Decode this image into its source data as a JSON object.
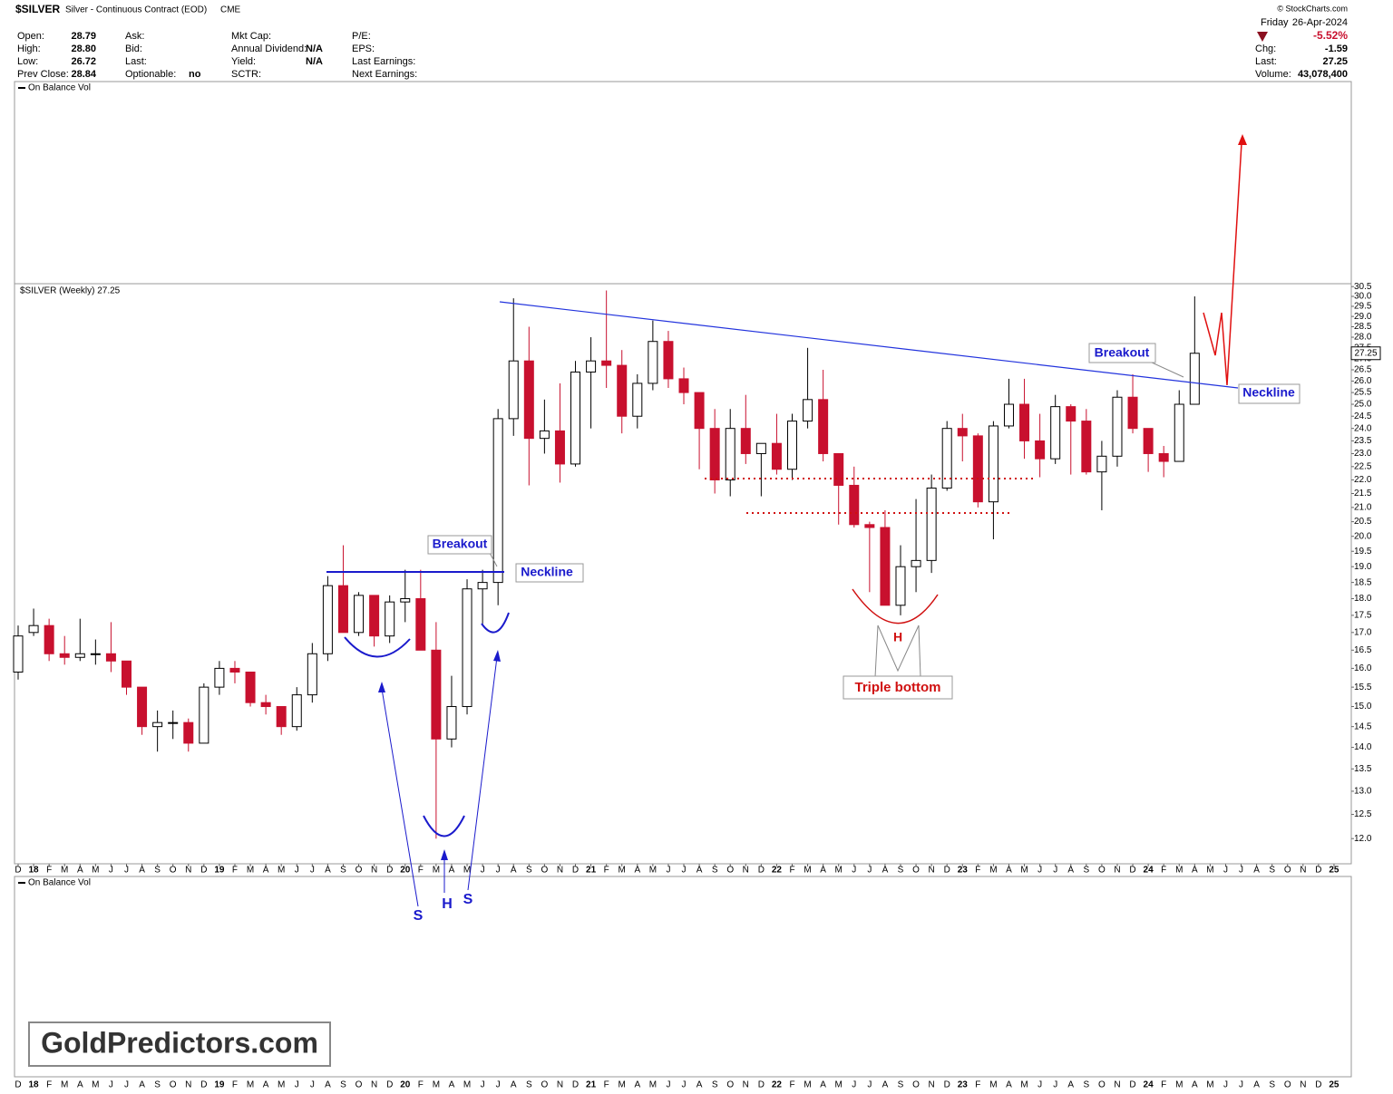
{
  "header": {
    "symbol": "$SILVER",
    "description": "Silver - Continuous Contract (EOD)",
    "exchange": "CME",
    "copyright": "© StockCharts.com",
    "day": "Friday",
    "date": "26-Apr-2024",
    "change_pct": "-5.52%",
    "quote": [
      [
        "Open:",
        "28.79"
      ],
      [
        "High:",
        "28.80"
      ],
      [
        "Low:",
        "26.72"
      ],
      [
        "Prev Close:",
        "28.84"
      ]
    ],
    "col2_labels": [
      "Ask:",
      "Bid:",
      "Last:",
      "Optionable:"
    ],
    "optionable": "no",
    "col3_labels": [
      "Mkt Cap:",
      "Annual Dividend:",
      "Yield:",
      "SCTR:"
    ],
    "dividend": "N/A",
    "yield": "N/A",
    "col4_labels": [
      "P/E:",
      "EPS:",
      "Last Earnings:",
      "Next Earnings:"
    ],
    "right_rows": [
      [
        "Chg:",
        "-1.59"
      ],
      [
        "Last:",
        "27.25"
      ],
      [
        "Volume:",
        "43,078,400"
      ]
    ]
  },
  "chart_data": {
    "type": "candlestick",
    "title": "$SILVER (Weekly) 27.25",
    "indicator_label": "On Balance Vol",
    "current_price_label": "27.25",
    "categories": [
      "D",
      "18",
      "F",
      "M",
      "A",
      "M",
      "J",
      "J",
      "A",
      "S",
      "O",
      "N",
      "D",
      "19",
      "F",
      "M",
      "A",
      "M",
      "J",
      "J",
      "A",
      "S",
      "O",
      "N",
      "D",
      "20",
      "F",
      "M",
      "A",
      "M",
      "J",
      "J",
      "A",
      "S",
      "O",
      "N",
      "D",
      "21",
      "F",
      "M",
      "A",
      "M",
      "J",
      "J",
      "A",
      "S",
      "O",
      "N",
      "D",
      "22",
      "F",
      "M",
      "A",
      "M",
      "J",
      "J",
      "A",
      "S",
      "O",
      "N",
      "D",
      "23",
      "F",
      "M",
      "A",
      "M",
      "J",
      "J",
      "A",
      "S",
      "O",
      "N",
      "D",
      "24",
      "F",
      "M",
      "A",
      "M",
      "J",
      "J",
      "A",
      "S",
      "O",
      "N",
      "D",
      "25"
    ],
    "open": [
      15.9,
      17.0,
      17.2,
      16.4,
      16.3,
      16.4,
      16.4,
      16.2,
      15.5,
      14.5,
      14.6,
      14.6,
      14.1,
      15.5,
      16.0,
      15.9,
      15.1,
      15.0,
      14.5,
      15.3,
      16.4,
      18.4,
      17.0,
      18.1,
      16.9,
      17.9,
      18.0,
      16.5,
      14.2,
      15.0,
      18.3,
      18.5,
      24.4,
      26.9,
      23.6,
      23.9,
      22.6,
      26.4,
      26.9,
      26.7,
      24.5,
      25.9,
      27.8,
      26.1,
      25.5,
      24.0,
      22.0,
      24.0,
      23.0,
      23.4,
      22.4,
      24.3,
      25.2,
      23.0,
      21.8,
      20.4,
      20.3,
      17.8,
      19.0,
      19.2,
      21.7,
      24.0,
      23.7,
      21.2,
      24.1,
      25.0,
      23.5,
      22.8,
      24.9,
      24.3,
      22.3,
      22.9,
      25.3,
      24.0,
      23.0,
      22.7,
      25.0,
      null,
      null,
      null,
      null,
      null,
      null,
      null,
      null,
      null
    ],
    "high": [
      17.2,
      17.7,
      17.4,
      16.9,
      17.4,
      16.8,
      17.3,
      16.2,
      15.5,
      14.9,
      14.9,
      14.7,
      15.6,
      16.2,
      16.2,
      15.9,
      15.3,
      15.0,
      15.5,
      16.7,
      18.7,
      19.7,
      18.2,
      18.1,
      18.1,
      18.9,
      18.9,
      17.3,
      15.8,
      18.6,
      18.9,
      24.8,
      29.9,
      28.5,
      25.2,
      25.9,
      26.9,
      28.0,
      30.3,
      27.4,
      26.3,
      28.8,
      28.3,
      26.6,
      25.5,
      24.8,
      24.8,
      25.4,
      23.4,
      24.6,
      24.6,
      27.5,
      26.5,
      23.0,
      22.5,
      20.5,
      20.9,
      19.7,
      21.3,
      22.2,
      24.3,
      24.6,
      23.8,
      24.3,
      26.1,
      26.1,
      24.6,
      25.4,
      25.0,
      24.8,
      23.5,
      25.6,
      26.3,
      24.0,
      23.3,
      25.6,
      30.0,
      null,
      null,
      null,
      null,
      null,
      null,
      null,
      null,
      null
    ],
    "low": [
      15.7,
      16.9,
      16.2,
      16.1,
      16.2,
      16.1,
      15.9,
      15.3,
      14.3,
      13.9,
      14.2,
      13.9,
      14.1,
      15.3,
      15.6,
      15.0,
      14.8,
      14.3,
      14.4,
      15.1,
      16.2,
      17.0,
      16.9,
      16.6,
      16.7,
      17.3,
      16.6,
      12.0,
      14.0,
      14.8,
      17.2,
      17.8,
      23.7,
      21.8,
      23.0,
      21.9,
      22.5,
      24.0,
      25.7,
      23.8,
      24.0,
      25.6,
      25.7,
      25.0,
      22.4,
      21.5,
      21.4,
      22.6,
      21.4,
      22.2,
      22.0,
      24.0,
      22.7,
      20.4,
      20.3,
      18.2,
      17.8,
      17.5,
      18.2,
      18.8,
      21.6,
      22.7,
      21.0,
      19.9,
      24.0,
      22.8,
      22.1,
      22.6,
      22.2,
      22.2,
      20.9,
      22.5,
      23.8,
      22.3,
      22.1,
      22.7,
      25.0,
      null,
      null,
      null,
      null,
      null,
      null,
      null,
      null,
      null
    ],
    "close": [
      16.9,
      17.2,
      16.4,
      16.3,
      16.4,
      16.4,
      16.2,
      15.5,
      14.5,
      14.6,
      14.6,
      14.1,
      15.5,
      16.0,
      15.9,
      15.1,
      15.0,
      14.5,
      15.3,
      16.4,
      18.4,
      17.0,
      18.1,
      16.9,
      17.9,
      18.0,
      16.5,
      14.2,
      15.0,
      18.3,
      18.5,
      24.4,
      26.9,
      23.6,
      23.9,
      22.6,
      26.4,
      26.9,
      26.7,
      24.5,
      25.9,
      27.8,
      26.1,
      25.5,
      24.0,
      22.0,
      24.0,
      23.0,
      23.4,
      22.4,
      24.3,
      25.2,
      23.0,
      21.8,
      20.4,
      20.3,
      17.8,
      19.0,
      19.2,
      21.7,
      24.0,
      23.7,
      21.2,
      24.1,
      25.0,
      23.5,
      22.8,
      24.9,
      24.3,
      22.3,
      22.9,
      25.3,
      24.0,
      23.0,
      22.7,
      25.0,
      27.25,
      null,
      null,
      null,
      null,
      null,
      null,
      null,
      null,
      null
    ],
    "up_color": "#000000",
    "down_color": "#c8102e",
    "ylim": [
      11.5,
      30.65
    ],
    "log_scale": true,
    "yticks": [
      {
        "value": 12,
        "label": "12.0"
      },
      12.5,
      {
        "value": 13,
        "label": "13.0"
      },
      13.5,
      {
        "value": 14,
        "label": "14.0"
      },
      14.5,
      {
        "value": 15,
        "label": "15.0"
      },
      15.5,
      {
        "value": 16,
        "label": "16.0"
      },
      16.5,
      {
        "value": 17,
        "label": "17.0"
      },
      17.5,
      {
        "value": 18,
        "label": "18.0"
      },
      18.5,
      {
        "value": 19,
        "label": "19.0"
      },
      19.5,
      {
        "value": 20,
        "label": "20.0"
      },
      20.5,
      {
        "value": 21,
        "label": "21.0"
      },
      21.5,
      {
        "value": 22,
        "label": "22.0"
      },
      22.5,
      {
        "value": 23,
        "label": "23.0"
      },
      23.5,
      {
        "value": 24,
        "label": "24.0"
      },
      24.5,
      {
        "value": 25,
        "label": "25.0"
      },
      25.5,
      {
        "value": 26,
        "label": "26.0"
      },
      26.5,
      {
        "value": 27,
        "label": "27.0"
      },
      27.5,
      {
        "value": 28,
        "label": "28.0"
      },
      28.5,
      {
        "value": 29,
        "label": "29.0"
      },
      29.5,
      {
        "value": 30,
        "label": "30.0"
      },
      30.5
    ],
    "annotations": {
      "breakout": "Breakout",
      "neckline": "Neckline",
      "shoulder": "S",
      "head": "H",
      "triple_bottom": "Triple bottom"
    },
    "watermark": "GoldPredictors.com"
  }
}
